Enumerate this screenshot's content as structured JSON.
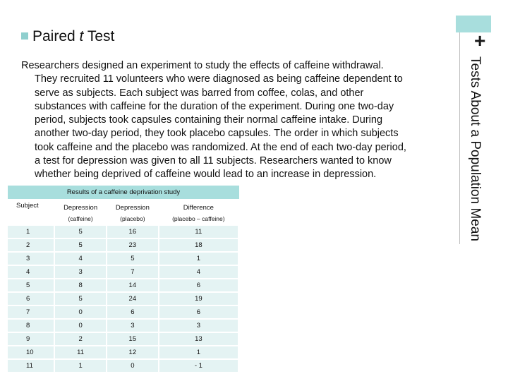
{
  "slide": {
    "side_title": "Tests About a Population Mean",
    "plus": "+",
    "heading_prefix": "Paired",
    "heading_italic": "t",
    "heading_suffix": "Test",
    "paragraph_lines": [
      "Researchers designed an experiment to study the effects of caffeine withdrawal.",
      "They recruited 11 volunteers who were diagnosed as being caffeine dependent to",
      "serve as subjects. Each subject was barred from coffee, colas, and other",
      "substances with caffeine for the duration of the experiment. During one two-day",
      "period, subjects took capsules containing their normal caffeine intake. During",
      "another two-day period, they took placebo capsules. The order in which subjects",
      "took caffeine and the placebo was randomized. At the end of each two-day period,",
      "a test for depression was given to all 11 subjects. Researchers wanted to know",
      "whether being deprived of caffeine would lead to an increase in depression."
    ]
  },
  "table": {
    "caption": "Results of a caffeine deprivation study",
    "headers": [
      {
        "top": "Subject",
        "bottom": ""
      },
      {
        "top": "Depression",
        "bottom": "(caffeine)"
      },
      {
        "top": "Depression",
        "bottom": "(placebo)"
      },
      {
        "top": "Difference",
        "bottom": "(placebo – caffeine)"
      }
    ],
    "rows": [
      [
        "1",
        "5",
        "16",
        "11"
      ],
      [
        "2",
        "5",
        "23",
        "18"
      ],
      [
        "3",
        "4",
        "5",
        "1"
      ],
      [
        "4",
        "3",
        "7",
        "4"
      ],
      [
        "5",
        "8",
        "14",
        "6"
      ],
      [
        "6",
        "5",
        "24",
        "19"
      ],
      [
        "7",
        "0",
        "6",
        "6"
      ],
      [
        "8",
        "0",
        "3",
        "3"
      ],
      [
        "9",
        "2",
        "15",
        "13"
      ],
      [
        "10",
        "11",
        "12",
        "1"
      ],
      [
        "11",
        "1",
        "0",
        "- 1"
      ]
    ]
  },
  "colors": {
    "accent": "#a8dedd",
    "bullet": "#8fcfce",
    "cell": "#e4f3f3"
  }
}
